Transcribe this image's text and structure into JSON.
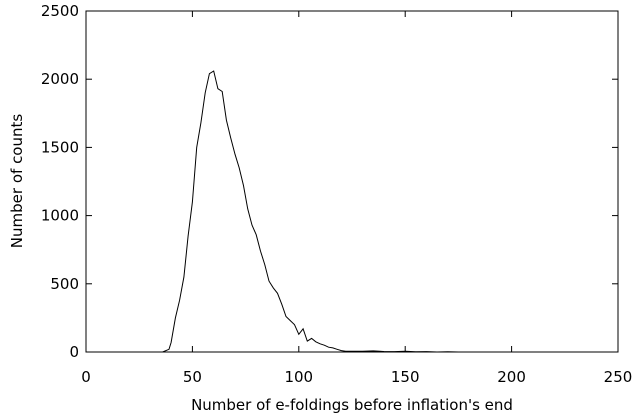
{
  "chart_data": {
    "type": "line",
    "title": "",
    "xlabel": "Number of e-foldings before inflation's end",
    "ylabel": "Number of counts",
    "xlim": [
      0,
      250
    ],
    "ylim": [
      0,
      2500
    ],
    "xticks": [
      0,
      50,
      100,
      150,
      200,
      250
    ],
    "yticks": [
      0,
      500,
      1000,
      1500,
      2000,
      2500
    ],
    "xtick_labels": [
      "0",
      "50",
      "100",
      "150",
      "200",
      "250"
    ],
    "ytick_labels": [
      "0",
      "500",
      "1000",
      "1500",
      "2000",
      "2500"
    ],
    "grid": false,
    "legend": "none",
    "series": [
      {
        "x": [
          36,
          39,
          40,
          42,
          44,
          46,
          48,
          50,
          52,
          54,
          56,
          58,
          60,
          62,
          64,
          66,
          68,
          70,
          72,
          74,
          76,
          78,
          80,
          82,
          84,
          86,
          88,
          90,
          92,
          94,
          96,
          98,
          100,
          102,
          104,
          106,
          108,
          110,
          112,
          114,
          116,
          118,
          120,
          122,
          125,
          130,
          135,
          140,
          145,
          150,
          155,
          160,
          165,
          170,
          175
        ],
        "y": [
          0,
          20,
          70,
          250,
          380,
          550,
          850,
          1100,
          1500,
          1680,
          1900,
          2040,
          2060,
          1930,
          1910,
          1700,
          1570,
          1450,
          1350,
          1220,
          1050,
          930,
          860,
          740,
          640,
          520,
          470,
          430,
          350,
          260,
          230,
          200,
          130,
          170,
          80,
          100,
          75,
          60,
          50,
          35,
          30,
          20,
          10,
          5,
          5,
          5,
          8,
          4,
          3,
          6,
          2,
          3,
          0,
          2,
          0
        ]
      }
    ]
  }
}
